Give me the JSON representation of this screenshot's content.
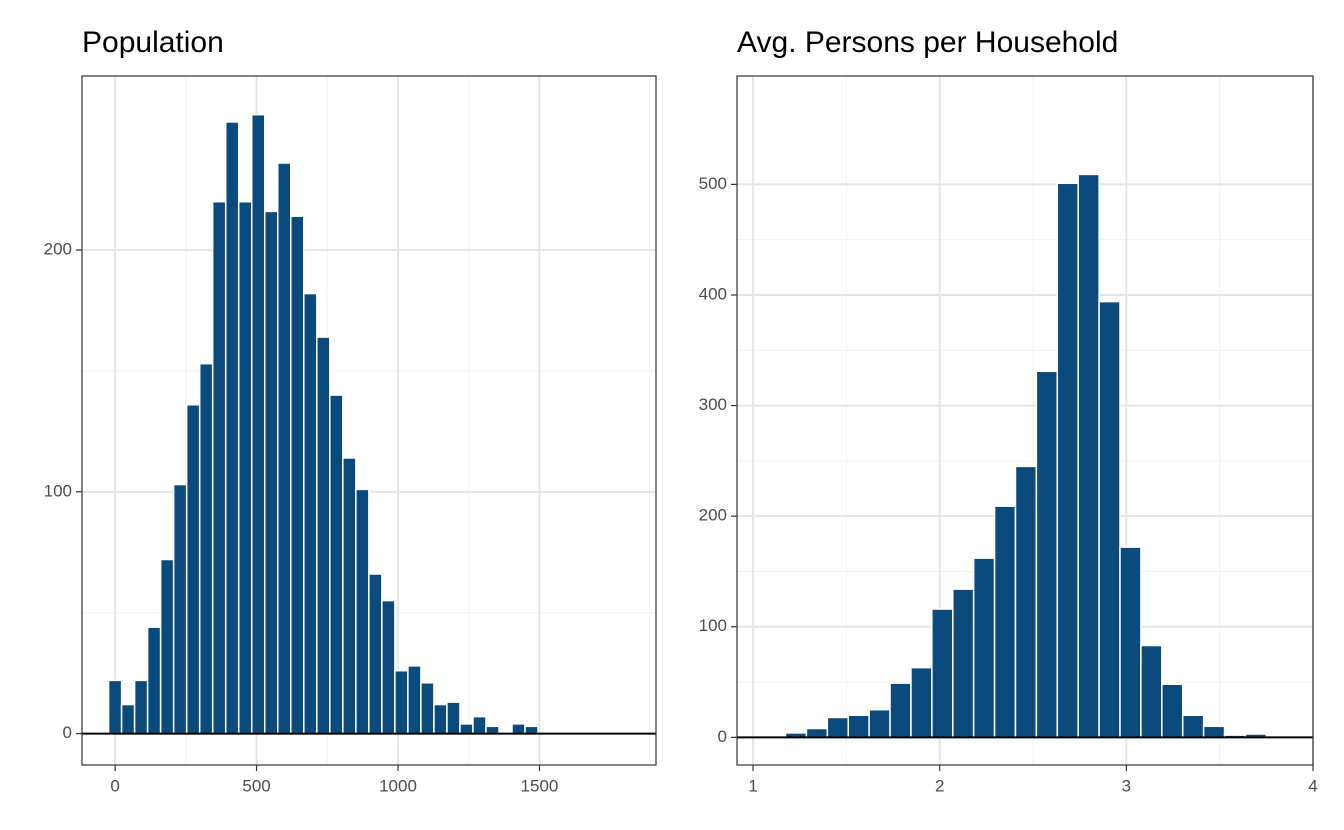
{
  "chart_data": [
    {
      "type": "histogram",
      "title": "Population",
      "color": "#0b4a7d",
      "grid": true,
      "bins": [
        -23,
        23,
        69,
        115,
        161,
        207,
        253,
        299,
        345,
        391,
        437,
        483,
        529,
        575,
        621,
        667,
        713,
        759,
        805,
        851,
        897,
        943,
        989,
        1035,
        1081,
        1127,
        1173,
        1219,
        1265,
        1311,
        1357,
        1403,
        1449,
        1495
      ],
      "values": [
        22,
        12,
        22,
        44,
        72,
        103,
        136,
        153,
        220,
        253,
        220,
        256,
        216,
        236,
        214,
        182,
        164,
        140,
        114,
        101,
        66,
        55,
        26,
        28,
        21,
        12,
        13,
        4,
        7,
        3,
        0,
        4,
        3
      ],
      "xlim": [
        -117,
        1912
      ],
      "xticks": [
        0,
        500,
        1000,
        1500
      ],
      "ylim": [
        -13,
        272
      ],
      "yticks": [
        0,
        100,
        200
      ]
    },
    {
      "type": "histogram",
      "title": "Avg. Persons per Household",
      "color": "#0b4a7d",
      "grid": true,
      "bins": [
        1.174,
        1.286,
        1.398,
        1.51,
        1.622,
        1.734,
        1.846,
        1.958,
        2.07,
        2.182,
        2.294,
        2.406,
        2.518,
        2.63,
        2.742,
        2.854,
        2.966,
        3.078,
        3.19,
        3.302,
        3.414,
        3.526,
        3.638,
        3.75
      ],
      "values": [
        4,
        8,
        18,
        20,
        25,
        49,
        63,
        116,
        134,
        162,
        209,
        245,
        331,
        501,
        509,
        394,
        172,
        83,
        48,
        20,
        10,
        2,
        3
      ],
      "xlim": [
        0.914,
        4
      ],
      "xticks": [
        1,
        2,
        3,
        4
      ],
      "ylim": [
        -25,
        598
      ],
      "yticks": [
        0,
        100,
        200,
        300,
        400,
        500
      ]
    }
  ]
}
